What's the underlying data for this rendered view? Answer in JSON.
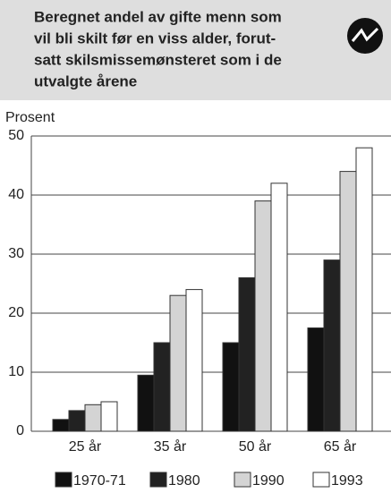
{
  "chart_data": {
    "type": "bar",
    "title": [
      "Beregnet andel av gifte menn som",
      "vil bli skilt før en viss alder, forut-",
      "satt skilsmissemønsteret som i de",
      "utvalgte årene"
    ],
    "y_label": "Prosent",
    "categories": [
      "25 år",
      "35 år",
      "50 år",
      "65 år"
    ],
    "series": [
      {
        "name": "1970-71",
        "color": "#111111",
        "values": [
          2,
          9.5,
          15,
          17.5
        ]
      },
      {
        "name": "1980",
        "color": "#222222",
        "values": [
          3.5,
          15,
          26,
          29
        ]
      },
      {
        "name": "1990",
        "color": "#d4d4d4",
        "values": [
          4.5,
          23,
          39,
          44
        ]
      },
      {
        "name": "1993",
        "color": "#ffffff",
        "values": [
          5,
          24,
          42,
          48
        ]
      }
    ],
    "ylim": [
      0,
      50
    ],
    "yticks": [
      0,
      10,
      20,
      30,
      40,
      50
    ],
    "grid": true
  }
}
